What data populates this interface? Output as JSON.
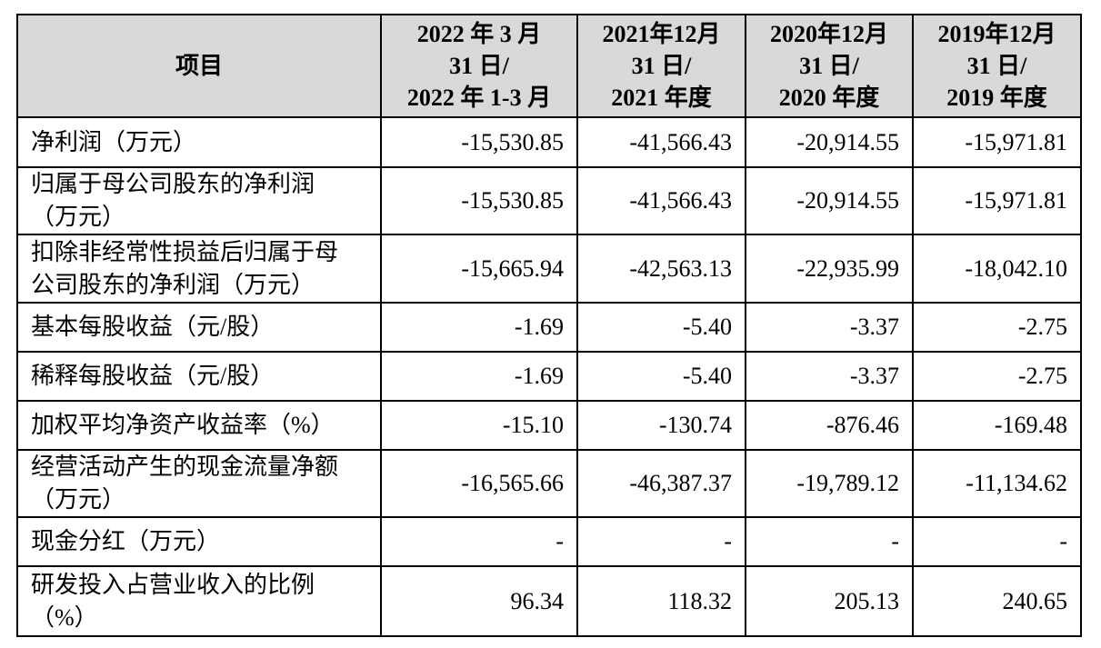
{
  "table": {
    "header": [
      [
        "项目"
      ],
      [
        "2022 年 3 月",
        "31 日/",
        "2022 年 1-3 月"
      ],
      [
        "2021年12月",
        "31 日/",
        "2021 年度"
      ],
      [
        "2020年12月",
        "31 日/",
        "2020 年度"
      ],
      [
        "2019年12月",
        "31 日/",
        "2019 年度"
      ]
    ],
    "rows": [
      [
        [
          "净利润（万元）"
        ],
        "-15,530.85",
        "-41,566.43",
        "-20,914.55",
        "-15,971.81"
      ],
      [
        [
          "归属于母公司股东的净利润",
          "（万元）"
        ],
        "-15,530.85",
        "-41,566.43",
        "-20,914.55",
        "-15,971.81"
      ],
      [
        [
          "扣除非经常性损益后归属于母",
          "公司股东的净利润（万元）"
        ],
        "-15,665.94",
        "-42,563.13",
        "-22,935.99",
        "-18,042.10"
      ],
      [
        [
          "基本每股收益（元/股）"
        ],
        "-1.69",
        "-5.40",
        "-3.37",
        "-2.75"
      ],
      [
        [
          "稀释每股收益（元/股）"
        ],
        "-1.69",
        "-5.40",
        "-3.37",
        "-2.75"
      ],
      [
        [
          "加权平均净资产收益率（%）"
        ],
        "-15.10",
        "-130.74",
        "-876.46",
        "-169.48"
      ],
      [
        [
          "经营活动产生的现金流量净额",
          "（万元）"
        ],
        "-16,565.66",
        "-46,387.37",
        "-19,789.12",
        "-11,134.62"
      ],
      [
        [
          "现金分红（万元）"
        ],
        "-",
        "-",
        "-",
        "-"
      ],
      [
        [
          "研发投入占营业收入的比例",
          "（%）"
        ],
        "96.34",
        "118.32",
        "205.13",
        "240.65"
      ]
    ]
  }
}
